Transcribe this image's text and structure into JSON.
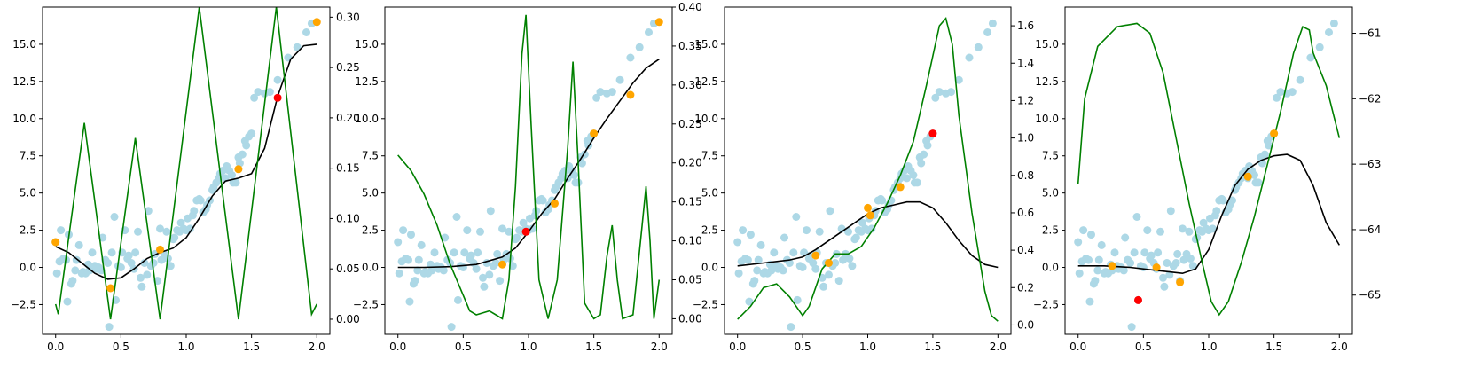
{
  "chart_data": [
    {
      "type": "scatter",
      "xlim": [
        -0.1,
        2.1
      ],
      "ylim": [
        -4.5,
        17.5
      ],
      "right_ylim": [
        -0.015,
        0.31
      ],
      "xticks": [
        0.0,
        0.5,
        1.0,
        1.5,
        2.0
      ],
      "yticks": [
        -2.5,
        0.0,
        2.5,
        5.0,
        7.5,
        10.0,
        12.5,
        15.0
      ],
      "right_yticks": [
        0.0,
        0.05,
        0.1,
        0.15,
        0.2,
        0.25,
        0.3
      ],
      "mean_curve": [
        [
          0.0,
          1.4
        ],
        [
          0.1,
          1.0
        ],
        [
          0.2,
          0.3
        ],
        [
          0.3,
          -0.4
        ],
        [
          0.4,
          -0.8
        ],
        [
          0.5,
          -0.7
        ],
        [
          0.6,
          -0.1
        ],
        [
          0.7,
          0.6
        ],
        [
          0.8,
          1.0
        ],
        [
          0.9,
          1.3
        ],
        [
          1.0,
          2.0
        ],
        [
          1.1,
          3.3
        ],
        [
          1.2,
          4.8
        ],
        [
          1.3,
          5.8
        ],
        [
          1.4,
          6.0
        ],
        [
          1.5,
          6.3
        ],
        [
          1.6,
          8.0
        ],
        [
          1.7,
          11.5
        ],
        [
          1.8,
          14.0
        ],
        [
          1.9,
          14.9
        ],
        [
          2.0,
          15.0
        ]
      ],
      "acquisition_curve": [
        [
          0.0,
          0.015
        ],
        [
          0.02,
          0.005
        ],
        [
          0.22,
          0.195
        ],
        [
          0.42,
          0.0
        ],
        [
          0.61,
          0.18
        ],
        [
          0.8,
          0.0
        ],
        [
          1.1,
          0.31
        ],
        [
          1.4,
          0.0
        ],
        [
          1.69,
          0.31
        ],
        [
          1.96,
          0.005
        ],
        [
          2.0,
          0.015
        ]
      ],
      "observed_points": [
        [
          0.0,
          1.7
        ],
        [
          0.42,
          -1.4
        ],
        [
          0.8,
          1.2
        ],
        [
          1.4,
          6.6
        ],
        [
          2.0,
          16.5
        ]
      ],
      "next_point": [
        1.7,
        11.4
      ]
    },
    {
      "type": "scatter",
      "xlim": [
        -0.1,
        2.1
      ],
      "ylim": [
        -4.5,
        17.5
      ],
      "right_ylim": [
        -0.02,
        0.4
      ],
      "xticks": [
        0.0,
        0.5,
        1.0,
        1.5,
        2.0
      ],
      "yticks": [
        -2.5,
        0.0,
        2.5,
        5.0,
        7.5,
        10.0,
        12.5,
        15.0
      ],
      "right_yticks": [
        0.0,
        0.05,
        0.1,
        0.15,
        0.2,
        0.25,
        0.3,
        0.35,
        0.4
      ],
      "mean_curve": [
        [
          0.0,
          0.0
        ],
        [
          0.2,
          0.0
        ],
        [
          0.4,
          0.05
        ],
        [
          0.6,
          0.2
        ],
        [
          0.8,
          0.7
        ],
        [
          0.9,
          1.3
        ],
        [
          1.0,
          2.4
        ],
        [
          1.1,
          3.6
        ],
        [
          1.2,
          4.6
        ],
        [
          1.3,
          6.0
        ],
        [
          1.4,
          7.3
        ],
        [
          1.5,
          8.7
        ],
        [
          1.6,
          10.0
        ],
        [
          1.7,
          11.2
        ],
        [
          1.8,
          12.4
        ],
        [
          1.9,
          13.4
        ],
        [
          2.0,
          14.0
        ]
      ],
      "acquisition_curve": [
        [
          0.0,
          0.21
        ],
        [
          0.1,
          0.19
        ],
        [
          0.2,
          0.16
        ],
        [
          0.3,
          0.12
        ],
        [
          0.4,
          0.07
        ],
        [
          0.5,
          0.03
        ],
        [
          0.55,
          0.01
        ],
        [
          0.6,
          0.005
        ],
        [
          0.7,
          0.01
        ],
        [
          0.75,
          0.005
        ],
        [
          0.8,
          0.0
        ],
        [
          0.85,
          0.05
        ],
        [
          0.9,
          0.17
        ],
        [
          0.95,
          0.34
        ],
        [
          0.98,
          0.39
        ],
        [
          1.02,
          0.25
        ],
        [
          1.08,
          0.05
        ],
        [
          1.15,
          0.0
        ],
        [
          1.22,
          0.05
        ],
        [
          1.3,
          0.22
        ],
        [
          1.34,
          0.33
        ],
        [
          1.38,
          0.2
        ],
        [
          1.43,
          0.02
        ],
        [
          1.5,
          0.0
        ],
        [
          1.55,
          0.005
        ],
        [
          1.6,
          0.08
        ],
        [
          1.64,
          0.12
        ],
        [
          1.68,
          0.05
        ],
        [
          1.72,
          0.0
        ],
        [
          1.8,
          0.005
        ],
        [
          1.87,
          0.12
        ],
        [
          1.9,
          0.17
        ],
        [
          1.93,
          0.1
        ],
        [
          1.96,
          0.0
        ],
        [
          2.0,
          0.05
        ]
      ],
      "observed_points": [
        [
          0.8,
          0.2
        ],
        [
          1.2,
          4.3
        ],
        [
          1.5,
          9.0
        ],
        [
          1.78,
          11.6
        ],
        [
          2.0,
          16.5
        ]
      ],
      "next_point": [
        0.98,
        2.4
      ]
    },
    {
      "type": "scatter",
      "xlim": [
        -0.1,
        2.1
      ],
      "ylim": [
        -4.5,
        17.5
      ],
      "right_ylim": [
        -0.05,
        1.7
      ],
      "xticks": [
        0.0,
        0.5,
        1.0,
        1.5,
        2.0
      ],
      "yticks": [
        -2.5,
        0.0,
        2.5,
        5.0,
        7.5,
        10.0,
        12.5,
        15.0
      ],
      "right_yticks": [
        0.0,
        0.2,
        0.4,
        0.6,
        0.8,
        1.0,
        1.2,
        1.4,
        1.6
      ],
      "mean_curve": [
        [
          0.0,
          0.1
        ],
        [
          0.2,
          0.3
        ],
        [
          0.4,
          0.5
        ],
        [
          0.5,
          0.7
        ],
        [
          0.6,
          1.2
        ],
        [
          0.7,
          1.8
        ],
        [
          0.8,
          2.4
        ],
        [
          0.9,
          3.0
        ],
        [
          1.0,
          3.6
        ],
        [
          1.1,
          4.0
        ],
        [
          1.2,
          4.2
        ],
        [
          1.3,
          4.4
        ],
        [
          1.4,
          4.4
        ],
        [
          1.5,
          4.0
        ],
        [
          1.6,
          3.0
        ],
        [
          1.7,
          1.8
        ],
        [
          1.8,
          0.8
        ],
        [
          1.9,
          0.2
        ],
        [
          2.0,
          0.0
        ]
      ],
      "acquisition_curve": [
        [
          0.0,
          0.03
        ],
        [
          0.1,
          0.1
        ],
        [
          0.2,
          0.2
        ],
        [
          0.3,
          0.22
        ],
        [
          0.4,
          0.15
        ],
        [
          0.5,
          0.05
        ],
        [
          0.55,
          0.1
        ],
        [
          0.65,
          0.3
        ],
        [
          0.75,
          0.38
        ],
        [
          0.85,
          0.38
        ],
        [
          0.95,
          0.42
        ],
        [
          1.05,
          0.52
        ],
        [
          1.15,
          0.65
        ],
        [
          1.25,
          0.8
        ],
        [
          1.35,
          0.98
        ],
        [
          1.45,
          1.28
        ],
        [
          1.55,
          1.6
        ],
        [
          1.6,
          1.64
        ],
        [
          1.65,
          1.5
        ],
        [
          1.7,
          1.12
        ],
        [
          1.8,
          0.6
        ],
        [
          1.9,
          0.18
        ],
        [
          1.95,
          0.05
        ],
        [
          2.0,
          0.02
        ]
      ],
      "observed_points": [
        [
          0.6,
          0.8
        ],
        [
          0.7,
          0.3
        ],
        [
          1.0,
          4.0
        ],
        [
          1.02,
          3.5
        ],
        [
          1.25,
          5.4
        ]
      ],
      "next_point": [
        1.5,
        9.0
      ]
    },
    {
      "type": "scatter",
      "xlim": [
        -0.1,
        2.1
      ],
      "ylim": [
        -4.5,
        17.5
      ],
      "right_ylim": [
        -65.6,
        -60.6
      ],
      "xticks": [
        0.0,
        0.5,
        1.0,
        1.5,
        2.0
      ],
      "yticks": [
        -2.5,
        0.0,
        2.5,
        5.0,
        7.5,
        10.0,
        12.5,
        15.0
      ],
      "right_yticks": [
        -65,
        -64,
        -63,
        -62,
        -61
      ],
      "mean_curve": [
        [
          0.0,
          0.1
        ],
        [
          0.2,
          0.1
        ],
        [
          0.4,
          0.0
        ],
        [
          0.6,
          -0.2
        ],
        [
          0.8,
          -0.4
        ],
        [
          0.9,
          -0.1
        ],
        [
          1.0,
          1.2
        ],
        [
          1.1,
          3.5
        ],
        [
          1.2,
          5.5
        ],
        [
          1.3,
          6.6
        ],
        [
          1.4,
          7.2
        ],
        [
          1.5,
          7.5
        ],
        [
          1.6,
          7.6
        ],
        [
          1.7,
          7.2
        ],
        [
          1.8,
          5.5
        ],
        [
          1.9,
          3.0
        ],
        [
          2.0,
          1.5
        ]
      ],
      "acquisition_curve": [
        [
          0.0,
          -63.3
        ],
        [
          0.05,
          -62.0
        ],
        [
          0.15,
          -61.2
        ],
        [
          0.3,
          -60.9
        ],
        [
          0.45,
          -60.85
        ],
        [
          0.55,
          -61.0
        ],
        [
          0.65,
          -61.6
        ],
        [
          0.75,
          -62.6
        ],
        [
          0.85,
          -63.6
        ],
        [
          0.95,
          -64.5
        ],
        [
          1.02,
          -65.1
        ],
        [
          1.08,
          -65.3
        ],
        [
          1.15,
          -65.1
        ],
        [
          1.25,
          -64.5
        ],
        [
          1.35,
          -63.8
        ],
        [
          1.45,
          -63.0
        ],
        [
          1.55,
          -62.2
        ],
        [
          1.65,
          -61.3
        ],
        [
          1.72,
          -60.9
        ],
        [
          1.77,
          -60.95
        ],
        [
          1.8,
          -61.3
        ],
        [
          1.9,
          -61.8
        ],
        [
          2.0,
          -62.6
        ]
      ],
      "observed_points": [
        [
          0.26,
          0.1
        ],
        [
          0.6,
          0.0
        ],
        [
          0.78,
          -1.0
        ],
        [
          1.3,
          6.1
        ],
        [
          1.5,
          9.0
        ]
      ],
      "next_point": [
        0.46,
        -2.2
      ]
    }
  ],
  "scatter_data": [
    [
      0.0,
      1.7
    ],
    [
      0.01,
      -0.4
    ],
    [
      0.03,
      0.4
    ],
    [
      0.04,
      2.5
    ],
    [
      0.06,
      0.6
    ],
    [
      0.08,
      0.5
    ],
    [
      0.09,
      -2.3
    ],
    [
      0.1,
      2.2
    ],
    [
      0.12,
      -1.1
    ],
    [
      0.13,
      -0.9
    ],
    [
      0.15,
      -0.2
    ],
    [
      0.16,
      0.5
    ],
    [
      0.18,
      1.5
    ],
    [
      0.2,
      -0.4
    ],
    [
      0.21,
      -0.3
    ],
    [
      0.23,
      -0.4
    ],
    [
      0.25,
      0.2
    ],
    [
      0.26,
      -0.2
    ],
    [
      0.28,
      1.0
    ],
    [
      0.3,
      0.1
    ],
    [
      0.31,
      -0.1
    ],
    [
      0.33,
      0.0
    ],
    [
      0.35,
      -0.2
    ],
    [
      0.36,
      2.0
    ],
    [
      0.38,
      0.5
    ],
    [
      0.4,
      0.3
    ],
    [
      0.41,
      -4.0
    ],
    [
      0.43,
      1.0
    ],
    [
      0.45,
      3.4
    ],
    [
      0.46,
      -2.2
    ],
    [
      0.48,
      0.1
    ],
    [
      0.5,
      0.0
    ],
    [
      0.51,
      1.0
    ],
    [
      0.53,
      2.5
    ],
    [
      0.55,
      0.6
    ],
    [
      0.56,
      0.8
    ],
    [
      0.58,
      0.3
    ],
    [
      0.6,
      -0.1
    ],
    [
      0.61,
      1.0
    ],
    [
      0.63,
      2.4
    ],
    [
      0.65,
      -0.7
    ],
    [
      0.66,
      -1.3
    ],
    [
      0.68,
      0.3
    ],
    [
      0.7,
      -0.5
    ],
    [
      0.71,
      3.8
    ],
    [
      0.73,
      0.1
    ],
    [
      0.75,
      0.3
    ],
    [
      0.76,
      0.9
    ],
    [
      0.78,
      -0.9
    ],
    [
      0.8,
      2.6
    ],
    [
      0.81,
      0.5
    ],
    [
      0.83,
      0.9
    ],
    [
      0.85,
      2.4
    ],
    [
      0.86,
      0.6
    ],
    [
      0.88,
      0.1
    ],
    [
      0.9,
      1.9
    ],
    [
      0.91,
      2.0
    ],
    [
      0.93,
      2.5
    ],
    [
      0.95,
      2.4
    ],
    [
      0.96,
      3.0
    ],
    [
      0.98,
      2.6
    ],
    [
      1.0,
      2.5
    ],
    [
      1.01,
      3.3
    ],
    [
      1.03,
      2.6
    ],
    [
      1.05,
      3.5
    ],
    [
      1.06,
      3.8
    ],
    [
      1.08,
      4.5
    ],
    [
      1.1,
      4.6
    ],
    [
      1.11,
      4.5
    ],
    [
      1.13,
      3.7
    ],
    [
      1.15,
      3.9
    ],
    [
      1.16,
      4.2
    ],
    [
      1.18,
      4.5
    ],
    [
      1.2,
      5.2
    ],
    [
      1.21,
      5.4
    ],
    [
      1.23,
      5.7
    ],
    [
      1.25,
      6.0
    ],
    [
      1.26,
      6.3
    ],
    [
      1.28,
      6.5
    ],
    [
      1.3,
      6.0
    ],
    [
      1.31,
      6.8
    ],
    [
      1.33,
      6.5
    ],
    [
      1.35,
      6.2
    ],
    [
      1.36,
      5.7
    ],
    [
      1.38,
      5.7
    ],
    [
      1.4,
      7.4
    ],
    [
      1.41,
      7.0
    ],
    [
      1.43,
      7.6
    ],
    [
      1.45,
      8.5
    ],
    [
      1.46,
      8.2
    ],
    [
      1.48,
      8.8
    ],
    [
      1.5,
      9.0
    ],
    [
      1.52,
      11.4
    ],
    [
      1.55,
      11.8
    ],
    [
      1.6,
      11.7
    ],
    [
      1.64,
      11.8
    ],
    [
      1.7,
      12.6
    ],
    [
      1.78,
      14.1
    ],
    [
      1.85,
      14.8
    ],
    [
      1.92,
      15.8
    ],
    [
      1.96,
      16.4
    ]
  ]
}
